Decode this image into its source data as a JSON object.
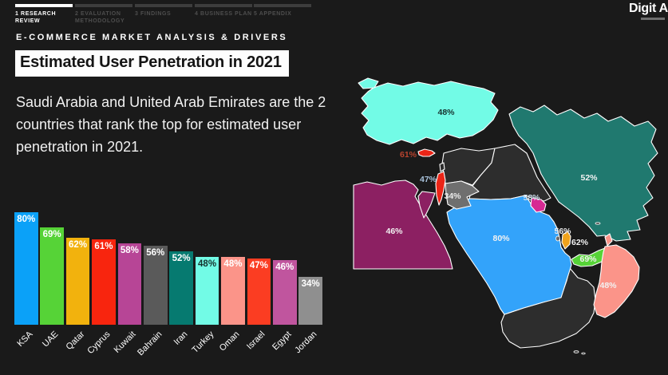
{
  "nav": {
    "tabs": [
      {
        "label": "1 RESEARCH REVIEW",
        "active": true
      },
      {
        "label": "2 EVALUATION METHODOLOGY",
        "active": false
      },
      {
        "label": "3 FINDINGS",
        "active": false
      },
      {
        "label": "4 BUSINESS PLAN",
        "active": false
      },
      {
        "label": "5 APPENDIX",
        "active": false
      }
    ]
  },
  "logo": {
    "text": "Digit A"
  },
  "header": {
    "eyebrow": "E-COMMERCE MARKET ANALYSIS & DRIVERS",
    "title": "Estimated User Penetration in 2021"
  },
  "description": "Saudi Arabia and United Arab Emirates are the 2 countries that rank the top for estimated user penetration in 2021.",
  "chart_data": {
    "type": "bar",
    "categories": [
      "KSA",
      "UAE",
      "Qatar",
      "Cyprus",
      "Kuwait",
      "Bahrain",
      "Iran",
      "Turkey",
      "Oman",
      "Israel",
      "Egypt",
      "Jordan"
    ],
    "values": [
      80,
      69,
      62,
      61,
      58,
      56,
      52,
      48,
      48,
      47,
      46,
      34
    ],
    "unit": "%",
    "colors": [
      "#0ba1f8",
      "#56d337",
      "#f2b20d",
      "#f8250e",
      "#b74596",
      "#5a5a5a",
      "#067a70",
      "#72fbe6",
      "#fb9489",
      "#fb3d22",
      "#c0559e",
      "#8f8f8f"
    ],
    "value_label_colors": [
      "#ffffff",
      "#ffffff",
      "#ffffff",
      "#ffffff",
      "#ffffff",
      "#ffffff",
      "#ffffff",
      "#16312e",
      "#ffffff",
      "#ffffff",
      "#ffffff",
      "#ffffff"
    ],
    "xlabel": "",
    "ylabel": "",
    "ylim": [
      0,
      100
    ],
    "axes_visible": false,
    "grid": false,
    "value_labels_position": "inside-top",
    "category_label_rotation": -45
  },
  "map": {
    "region": "Middle East",
    "background": "#1a1a1a",
    "border_color": "#ffffff",
    "countries": [
      {
        "name": "Turkey",
        "value": "48%",
        "fill": "#72fbe6",
        "label_fill": "#17322f"
      },
      {
        "name": "Iran",
        "value": "52%",
        "fill": "#20796f",
        "label_fill": "#f2f2f2"
      },
      {
        "name": "Saudi Arabia",
        "value": "80%",
        "fill": "#33a3fa",
        "label_fill": "#f2f2f2"
      },
      {
        "name": "Egypt",
        "value": "46%",
        "fill": "#8c2062",
        "label_fill": "#f2f2f2"
      },
      {
        "name": "Cyprus",
        "value": "61%",
        "fill": "#ea2517",
        "label_fill": "#b8432e"
      },
      {
        "name": "Israel",
        "value": "47%",
        "fill": "#ea2517",
        "label_fill": "#a9c3dc"
      },
      {
        "name": "Jordan",
        "value": "34%",
        "fill": "#6f6f6f",
        "label_fill": "#ececec"
      },
      {
        "name": "Kuwait",
        "value": "58%",
        "fill": "#d62a93",
        "label_fill": "#cfe0ee"
      },
      {
        "name": "Bahrain",
        "value": "56%",
        "fill": "#6a6a6a",
        "label_fill": "#ececec"
      },
      {
        "name": "Qatar",
        "value": "62%",
        "fill": "#f0a31c",
        "label_fill": "#f2f2f2"
      },
      {
        "name": "UAE",
        "value": "69%",
        "fill": "#56d337",
        "label_fill": "#f2f2f2"
      },
      {
        "name": "Oman",
        "value": "48%",
        "fill": "#fb9489",
        "label_fill": "#f2f2f2"
      },
      {
        "name": "Syria",
        "value": "",
        "fill": "#2d2d2d",
        "label_fill": ""
      },
      {
        "name": "Iraq",
        "value": "",
        "fill": "#2d2d2d",
        "label_fill": ""
      },
      {
        "name": "Yemen",
        "value": "",
        "fill": "#2d2d2d",
        "label_fill": ""
      },
      {
        "name": "Lebanon",
        "value": "",
        "fill": "#2d2d2d",
        "label_fill": ""
      }
    ]
  }
}
